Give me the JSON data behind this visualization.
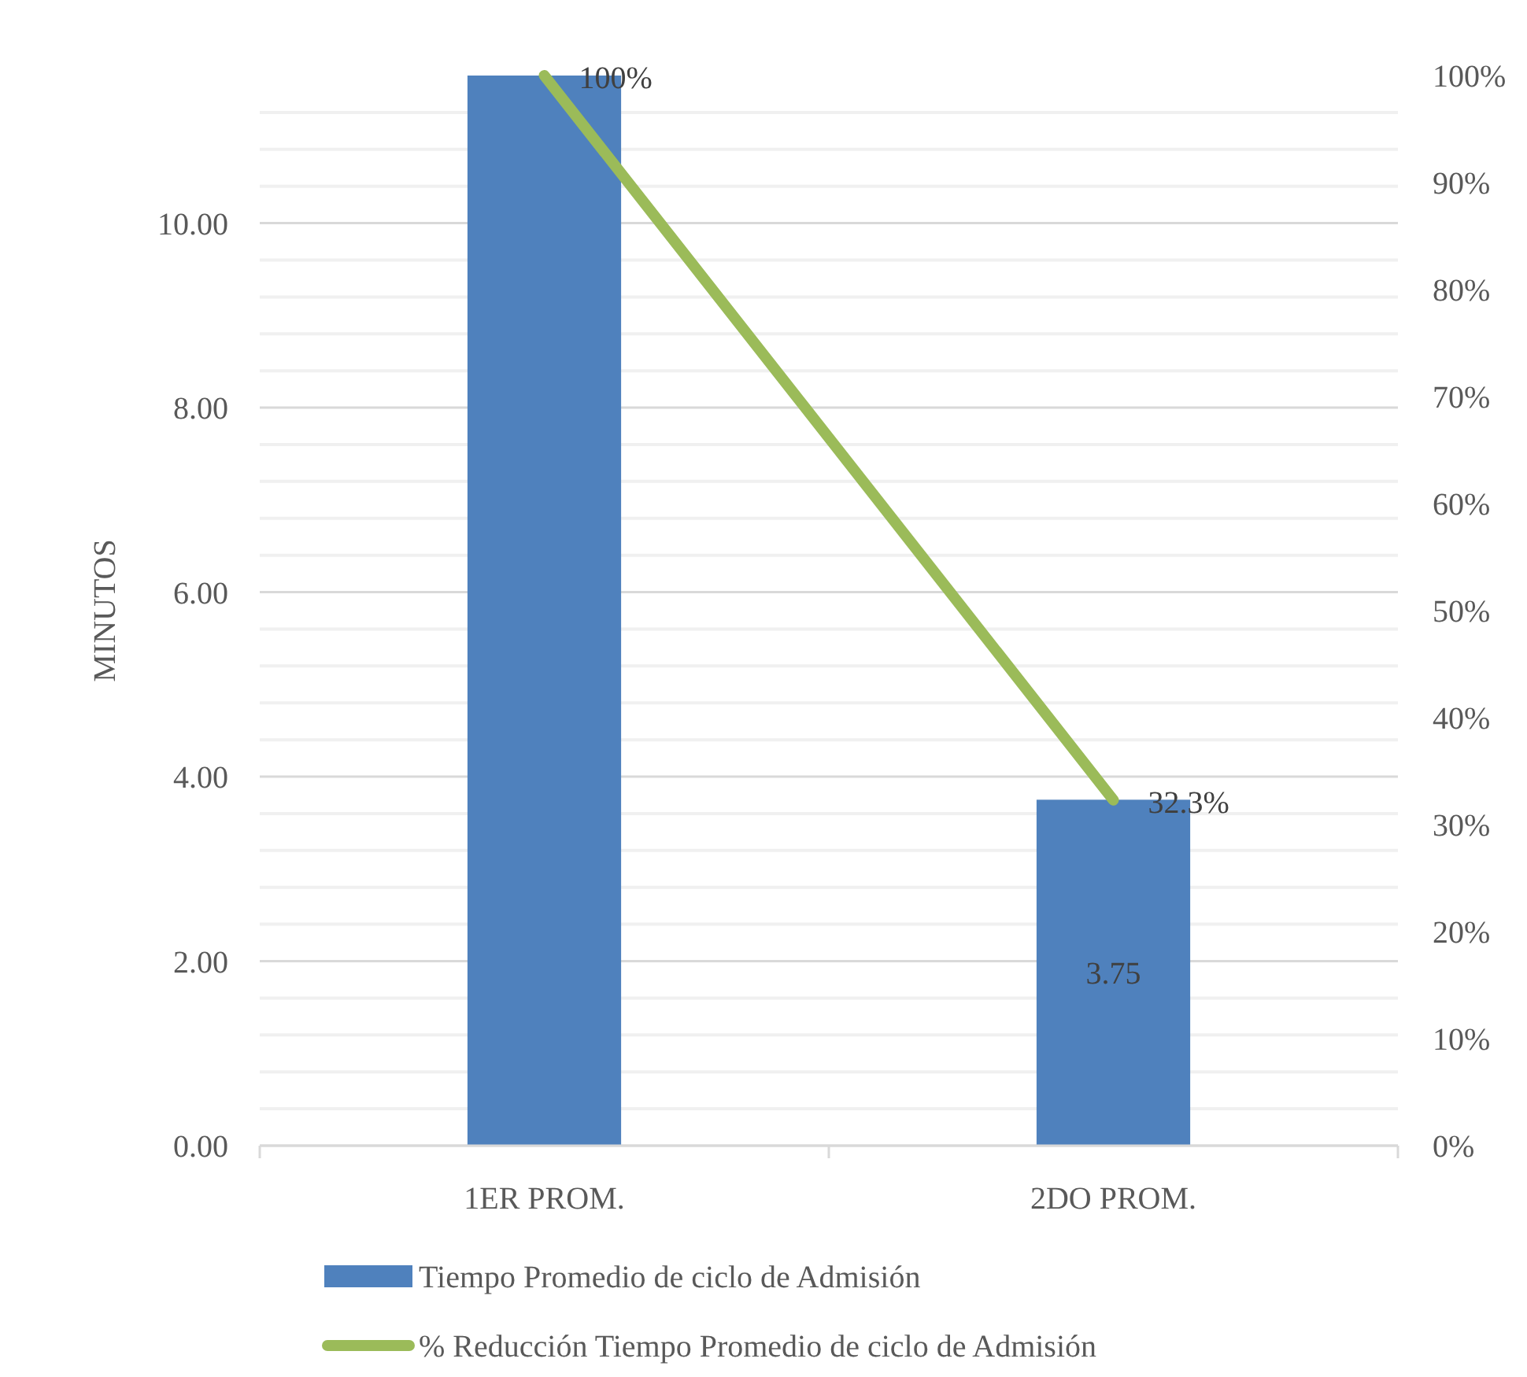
{
  "chart_data": {
    "type": "bar",
    "ylabel": "MINUTOS",
    "categories": [
      "1ER PROM.",
      "2DO PROM."
    ],
    "series": [
      {
        "name": "Tiempo Promedio de ciclo de Admisión",
        "color": "#4f81bd",
        "values": [
          11.6,
          3.75
        ],
        "value_labels": [
          null,
          "3.75"
        ]
      },
      {
        "type": "line",
        "axis": "y2",
        "name": "% Reducción Tiempo Promedio de ciclo de Admisión",
        "color": "#9bbb59",
        "values": [
          100,
          32.3
        ],
        "value_labels": [
          "100%",
          "32.3%"
        ],
        "marker": "none"
      }
    ],
    "ylim": [
      0,
      11.6
    ],
    "yticks": [
      {
        "value": 0,
        "label": "0.00"
      },
      {
        "value": 0.4,
        "label": null
      },
      {
        "value": 0.8,
        "label": null
      },
      {
        "value": 1.2,
        "label": null
      },
      {
        "value": 1.6,
        "label": null
      },
      {
        "value": 2,
        "label": "2.00"
      },
      {
        "value": 2.4,
        "label": null
      },
      {
        "value": 2.8,
        "label": null
      },
      {
        "value": 3.2,
        "label": null
      },
      {
        "value": 3.6,
        "label": null
      },
      {
        "value": 4,
        "label": "4.00"
      },
      {
        "value": 4.4,
        "label": null
      },
      {
        "value": 4.8,
        "label": null
      },
      {
        "value": 5.2,
        "label": null
      },
      {
        "value": 5.6,
        "label": null
      },
      {
        "value": 6,
        "label": "6.00"
      },
      {
        "value": 6.4,
        "label": null
      },
      {
        "value": 6.8,
        "label": null
      },
      {
        "value": 7.2,
        "label": null
      },
      {
        "value": 7.6,
        "label": null
      },
      {
        "value": 8,
        "label": "8.00"
      },
      {
        "value": 8.4,
        "label": null
      },
      {
        "value": 8.8,
        "label": null
      },
      {
        "value": 9.2,
        "label": null
      },
      {
        "value": 9.6,
        "label": null
      },
      {
        "value": 10,
        "label": "10.00"
      },
      {
        "value": 10.4,
        "label": null
      },
      {
        "value": 10.8,
        "label": null
      },
      {
        "value": 11.2,
        "label": null
      }
    ],
    "y2lim": [
      0,
      100
    ],
    "y2ticks": [
      {
        "value": 0,
        "label": "0%"
      },
      {
        "value": 10,
        "label": "10%"
      },
      {
        "value": 20,
        "label": "20%"
      },
      {
        "value": 30,
        "label": "30%"
      },
      {
        "value": 40,
        "label": "40%"
      },
      {
        "value": 50,
        "label": "50%"
      },
      {
        "value": 60,
        "label": "60%"
      },
      {
        "value": 70,
        "label": "70%"
      },
      {
        "value": 80,
        "label": "80%"
      },
      {
        "value": 90,
        "label": "90%"
      },
      {
        "value": 100,
        "label": "100%"
      }
    ],
    "grid": "y",
    "legend": "bottom"
  }
}
